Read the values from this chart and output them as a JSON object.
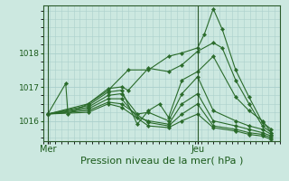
{
  "background_color": "#cce8e0",
  "grid_color": "#aad0cc",
  "line_color": "#2a6b2a",
  "marker_color": "#2a6b2a",
  "xlabel": "Pression niveau de la mer( hPa )",
  "xlabel_fontsize": 8,
  "ylim": [
    1015.4,
    1019.4
  ],
  "yticks": [
    1016,
    1017,
    1018
  ],
  "xtick_labels": [
    "Mer",
    "Jeu"
  ],
  "xtick_positions": [
    0,
    0.67
  ],
  "vline_x": [
    0.0,
    0.67
  ],
  "series": [
    [
      0.0,
      1016.2,
      0.08,
      1017.1,
      0.09,
      1016.2,
      0.18,
      1016.5,
      0.27,
      1016.9,
      0.36,
      1017.5,
      0.45,
      1017.5,
      0.54,
      1017.9,
      0.6,
      1018.0,
      0.67,
      1018.15,
      0.7,
      1018.55,
      0.74,
      1019.3,
      0.78,
      1018.7,
      0.84,
      1017.5,
      0.9,
      1016.7,
      0.96,
      1015.95,
      1.0,
      1015.75
    ],
    [
      0.0,
      1016.2,
      0.18,
      1016.5,
      0.27,
      1016.95,
      0.33,
      1017.0,
      0.36,
      1016.9,
      0.45,
      1017.55,
      0.54,
      1017.45,
      0.6,
      1017.65,
      0.67,
      1018.05,
      0.74,
      1018.3,
      0.78,
      1018.15,
      0.84,
      1017.2,
      0.9,
      1016.5,
      0.96,
      1015.85,
      1.0,
      1015.65
    ],
    [
      0.0,
      1016.2,
      0.18,
      1016.45,
      0.27,
      1016.85,
      0.33,
      1016.9,
      0.4,
      1015.9,
      0.45,
      1016.3,
      0.5,
      1016.5,
      0.54,
      1016.1,
      0.6,
      1017.2,
      0.67,
      1017.45,
      0.74,
      1017.9,
      0.84,
      1016.7,
      0.9,
      1016.3,
      0.96,
      1016.0,
      1.0,
      1015.65
    ],
    [
      0.0,
      1016.2,
      0.18,
      1016.4,
      0.27,
      1016.75,
      0.33,
      1016.8,
      0.4,
      1016.2,
      0.45,
      1016.25,
      0.54,
      1016.0,
      0.6,
      1016.8,
      0.67,
      1017.3,
      0.74,
      1016.3,
      0.84,
      1016.0,
      0.9,
      1015.85,
      0.96,
      1015.75,
      1.0,
      1015.6
    ],
    [
      0.0,
      1016.2,
      0.18,
      1016.35,
      0.27,
      1016.65,
      0.33,
      1016.65,
      0.4,
      1016.1,
      0.45,
      1016.0,
      0.54,
      1015.9,
      0.6,
      1016.5,
      0.67,
      1016.8,
      0.74,
      1016.0,
      0.84,
      1015.85,
      0.9,
      1015.75,
      0.96,
      1015.65,
      1.0,
      1015.55
    ],
    [
      0.0,
      1016.2,
      0.18,
      1016.3,
      0.27,
      1016.55,
      0.33,
      1016.5,
      0.45,
      1015.95,
      0.54,
      1015.85,
      0.6,
      1016.2,
      0.67,
      1016.5,
      0.74,
      1015.85,
      0.84,
      1015.75,
      0.9,
      1015.65,
      0.96,
      1015.6,
      1.0,
      1015.5
    ],
    [
      0.0,
      1016.2,
      0.18,
      1016.25,
      0.27,
      1016.5,
      0.33,
      1016.4,
      0.45,
      1015.85,
      0.54,
      1015.8,
      0.6,
      1016.0,
      0.67,
      1016.2,
      0.74,
      1015.8,
      0.84,
      1015.7,
      0.9,
      1015.6,
      0.96,
      1015.55,
      1.0,
      1015.45
    ]
  ]
}
